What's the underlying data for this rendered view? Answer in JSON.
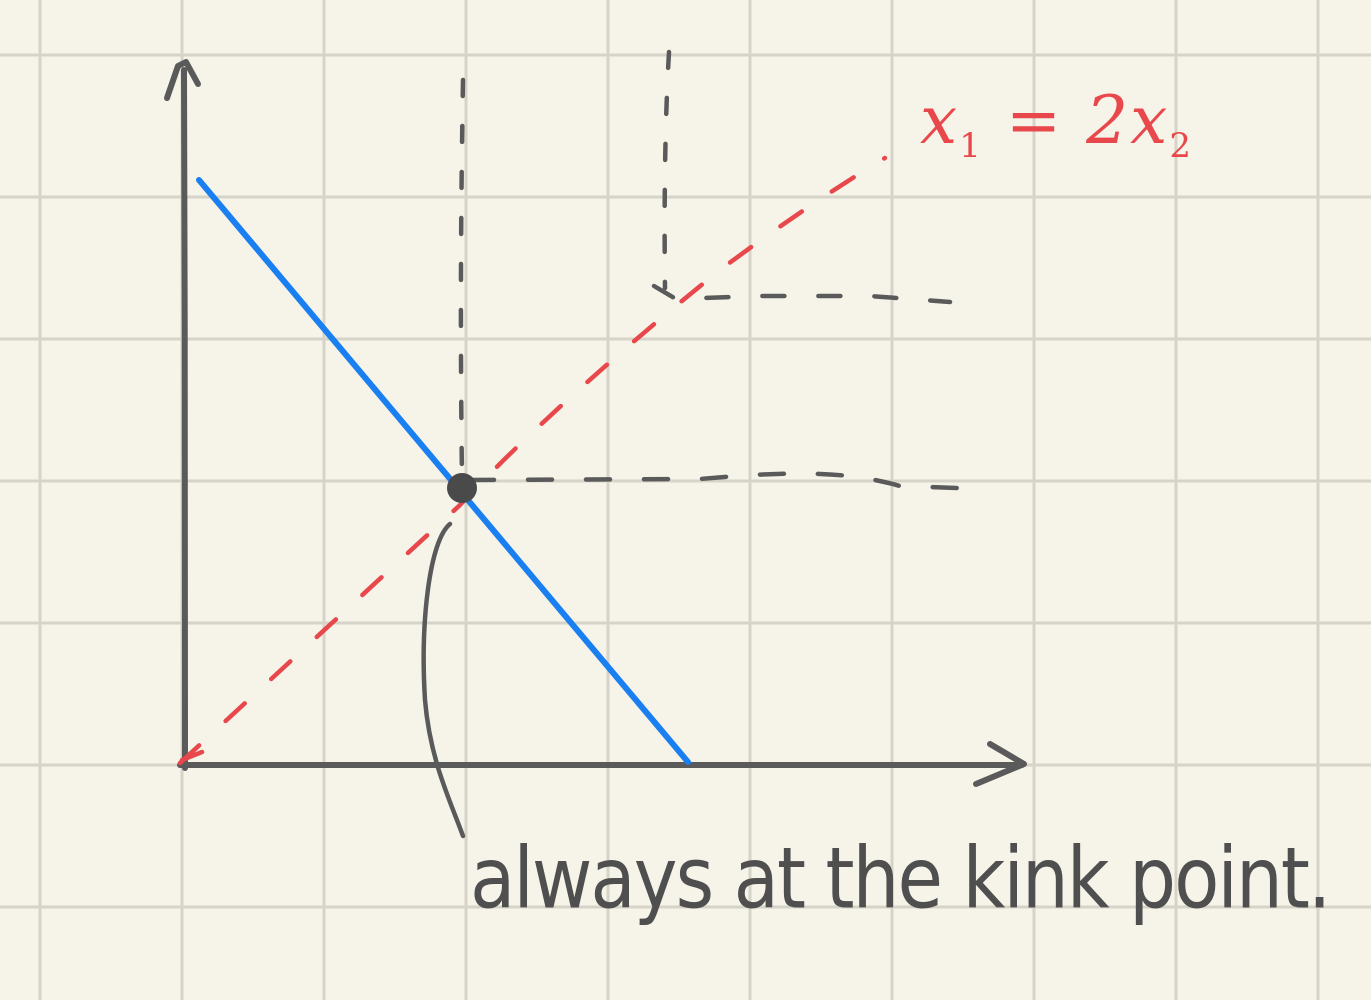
{
  "diagram": {
    "constraint_label": {
      "lhs": "x",
      "lhs_sub": "1",
      "equals": "=",
      "coef": "2",
      "rhs": "x",
      "rhs_sub": "2"
    },
    "caption": "always at the kink point.",
    "colors": {
      "paper": "#f6f4e9",
      "grid": "#d6d4c9",
      "axes": "#5a5a5a",
      "budget_line": "#1a7ff0",
      "ray": "#e8474b",
      "indifference": "#5a5a5a"
    },
    "icons": {
      "optimum_marker": "filled-dot",
      "axis_heads": "open-arrowhead"
    }
  }
}
